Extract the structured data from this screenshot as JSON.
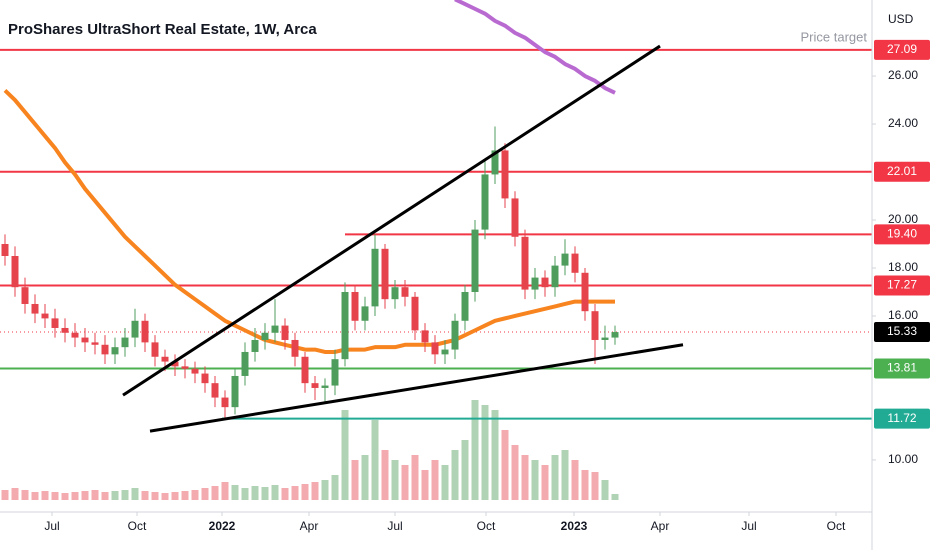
{
  "chart_data": {
    "type": "candlestick",
    "title": "ProShares UltraShort Real Estate, 1W, Arca",
    "currency": "USD",
    "annotation": "Price target",
    "up_color": "#4f9d5d",
    "down_color": "#e5444d",
    "ylim": [
      7.83,
      29.17
    ],
    "yticks": [
      {
        "value": 26,
        "label": "26.00"
      },
      {
        "value": 24,
        "label": "24.00"
      },
      {
        "value": 20,
        "label": "20.00"
      },
      {
        "value": 18,
        "label": "18.00"
      },
      {
        "value": 16,
        "label": "16.00"
      },
      {
        "value": 10,
        "label": "10.00"
      }
    ],
    "xlim": [
      -0.5,
      86.7
    ],
    "xticks": [
      {
        "value": 4.7,
        "label": "Jul"
      },
      {
        "value": 13.2,
        "label": "Oct"
      },
      {
        "value": 21.7,
        "label": "2022"
      },
      {
        "value": 30.4,
        "label": "Apr"
      },
      {
        "value": 39,
        "label": "Jul"
      },
      {
        "value": 48.1,
        "label": "Oct"
      },
      {
        "value": 56.9,
        "label": "2023"
      },
      {
        "value": 65.5,
        "label": "Apr"
      },
      {
        "value": 74.4,
        "label": "Jul"
      },
      {
        "value": 83.1,
        "label": "Oct"
      }
    ],
    "open": [
      19.0,
      18.5,
      17.2,
      16.5,
      16.1,
      15.9,
      15.5,
      15.3,
      15.1,
      14.9,
      14.8,
      14.4,
      14.7,
      15.1,
      15.8,
      14.9,
      14.3,
      14.1,
      13.9,
      13.8,
      13.6,
      13.2,
      12.6,
      12.2,
      13.5,
      14.5,
      15.0,
      15.3,
      15.6,
      15.0,
      14.3,
      13.2,
      13.0,
      13.1,
      14.2,
      17.0,
      15.8,
      16.4,
      18.8,
      16.7,
      17.2,
      16.8,
      15.4,
      14.9,
      14.4,
      14.6,
      15.8,
      17.0,
      19.6,
      21.9,
      22.9,
      20.9,
      19.3,
      17.1,
      17.6,
      17.2,
      18.1,
      18.6,
      17.8,
      16.2,
      15.0,
      15.1
    ],
    "high": [
      19.4,
      18.9,
      17.6,
      16.9,
      16.5,
      16.3,
      15.9,
      15.7,
      15.5,
      15.3,
      15.2,
      15.1,
      15.5,
      16.3,
      16.1,
      15.2,
      14.6,
      14.4,
      14.2,
      14.1,
      13.9,
      13.5,
      12.9,
      13.8,
      14.9,
      15.5,
      15.7,
      16.7,
      15.9,
      15.3,
      14.5,
      13.5,
      13.4,
      14.6,
      17.4,
      17.3,
      16.8,
      19.4,
      19.0,
      17.5,
      17.5,
      17.0,
      15.7,
      15.2,
      15.0,
      16.1,
      17.3,
      20.0,
      22.5,
      23.9,
      23.2,
      21.2,
      19.6,
      18.0,
      17.9,
      18.5,
      19.2,
      18.9,
      18.0,
      16.5,
      15.6,
      15.6
    ],
    "low": [
      18.1,
      16.8,
      16.1,
      15.7,
      15.5,
      15.1,
      14.9,
      14.7,
      14.5,
      14.4,
      14.0,
      14.0,
      14.3,
      14.7,
      14.5,
      13.9,
      13.7,
      13.5,
      13.4,
      13.2,
      12.8,
      12.2,
      11.7,
      11.9,
      13.1,
      14.1,
      14.6,
      14.9,
      14.6,
      13.9,
      12.8,
      12.5,
      12.4,
      12.7,
      13.9,
      15.4,
      15.4,
      16.0,
      16.3,
      16.3,
      16.4,
      15.0,
      14.5,
      14.0,
      14.0,
      14.2,
      15.4,
      16.6,
      19.2,
      21.5,
      20.5,
      18.9,
      16.7,
      16.7,
      16.8,
      16.8,
      17.7,
      17.4,
      15.8,
      14.0,
      14.6,
      14.8
    ],
    "close": [
      18.5,
      17.2,
      16.5,
      16.1,
      15.9,
      15.5,
      15.3,
      15.1,
      14.9,
      14.8,
      14.4,
      14.7,
      15.1,
      15.8,
      14.9,
      14.3,
      14.1,
      13.9,
      13.8,
      13.6,
      13.2,
      12.6,
      12.2,
      13.5,
      14.5,
      15.0,
      15.3,
      15.6,
      15.0,
      14.3,
      13.2,
      13.0,
      13.1,
      14.2,
      17.0,
      15.8,
      16.4,
      18.8,
      16.7,
      17.2,
      16.8,
      15.4,
      14.9,
      14.4,
      14.6,
      15.8,
      17.0,
      19.6,
      21.9,
      22.9,
      20.9,
      19.3,
      17.1,
      17.6,
      17.2,
      18.1,
      18.6,
      17.8,
      16.2,
      15.0,
      15.1,
      15.33
    ],
    "volume": [
      10,
      12,
      10,
      8,
      9,
      8,
      7,
      8,
      9,
      10,
      8,
      9,
      10,
      12,
      9,
      8,
      7,
      8,
      9,
      10,
      12,
      14,
      18,
      15,
      12,
      14,
      13,
      15,
      12,
      14,
      16,
      18,
      20,
      25,
      90,
      40,
      45,
      80,
      50,
      40,
      35,
      45,
      30,
      40,
      35,
      50,
      60,
      100,
      95,
      90,
      70,
      55,
      45,
      40,
      35,
      45,
      50,
      40,
      30,
      28,
      20,
      6
    ],
    "volume_lim": [
      0,
      100
    ],
    "moving_averages": [
      {
        "color": "#f7841f",
        "values": [
          25.4,
          25.0,
          24.5,
          24.0,
          23.5,
          23.0,
          22.4,
          21.9,
          21.3,
          20.8,
          20.3,
          19.8,
          19.3,
          18.9,
          18.5,
          18.1,
          17.7,
          17.3,
          17.0,
          16.7,
          16.4,
          16.1,
          15.8,
          15.6,
          15.4,
          15.2,
          15.0,
          14.9,
          14.8,
          14.7,
          14.6,
          14.6,
          14.5,
          14.5,
          14.6,
          14.6,
          14.6,
          14.7,
          14.7,
          14.7,
          14.8,
          14.8,
          14.8,
          14.8,
          14.9,
          15.0,
          15.2,
          15.4,
          15.6,
          15.8,
          15.9,
          16.0,
          16.1,
          16.2,
          16.3,
          16.4,
          16.5,
          16.6,
          16.6,
          16.6,
          16.6,
          16.6
        ]
      },
      {
        "color": "#b96ad1",
        "values": [
          null,
          null,
          null,
          null,
          null,
          null,
          null,
          null,
          null,
          null,
          null,
          null,
          null,
          null,
          null,
          null,
          null,
          null,
          null,
          null,
          null,
          null,
          null,
          null,
          null,
          null,
          null,
          null,
          null,
          null,
          null,
          null,
          null,
          null,
          null,
          null,
          null,
          null,
          null,
          null,
          null,
          null,
          null,
          null,
          null,
          29.2,
          29.0,
          28.8,
          28.6,
          28.3,
          28.1,
          27.8,
          27.6,
          27.3,
          27.0,
          26.8,
          26.5,
          26.3,
          26.0,
          25.8,
          25.5,
          25.3
        ]
      }
    ],
    "trendlines": [
      {
        "x": [
          11.8,
          65.5
        ],
        "y": [
          12.7,
          27.25
        ],
        "color": "#000000"
      },
      {
        "x": [
          14.5,
          67.8
        ],
        "y": [
          11.2,
          14.8
        ],
        "color": "#000000"
      }
    ],
    "levels": [
      {
        "value": 27.09,
        "label": "27.09",
        "color": "#f23645",
        "start": -0.5
      },
      {
        "value": 22.01,
        "label": "22.01",
        "color": "#f23645",
        "start": -0.5
      },
      {
        "value": 19.4,
        "label": "19.40",
        "color": "#f23645",
        "start": 34
      },
      {
        "value": 17.27,
        "label": "17.27",
        "color": "#f23645",
        "start": -0.5
      },
      {
        "value": 13.81,
        "label": "13.81",
        "color": "#4caf50",
        "start": -0.5
      },
      {
        "value": 11.72,
        "label": "11.72",
        "color": "#22ab94",
        "start": 21.7
      }
    ],
    "last_price": {
      "value": 15.33,
      "label": "15.33",
      "color": "#000000"
    }
  }
}
